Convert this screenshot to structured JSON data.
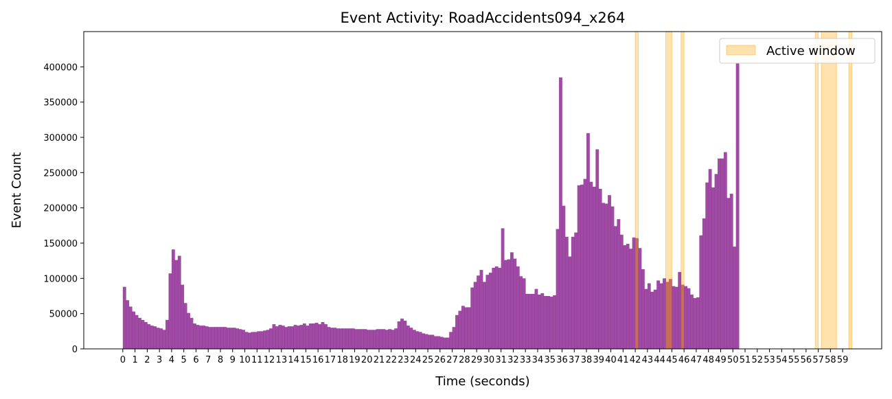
{
  "chart_data": {
    "type": "bar",
    "title": "Event Activity: RoadAccidents094_x264",
    "xlabel": "Time (seconds)",
    "ylabel": "Event Count",
    "xlim": [
      -3.2,
      62.2
    ],
    "ylim": [
      0,
      450000
    ],
    "x_ticks": [
      0,
      1,
      2,
      3,
      4,
      5,
      6,
      7,
      8,
      9,
      10,
      11,
      12,
      13,
      14,
      15,
      16,
      17,
      18,
      19,
      20,
      21,
      22,
      23,
      24,
      25,
      26,
      27,
      28,
      29,
      30,
      31,
      32,
      33,
      34,
      35,
      36,
      37,
      38,
      39,
      40,
      41,
      42,
      43,
      44,
      45,
      46,
      47,
      48,
      49,
      50,
      51,
      52,
      53,
      54,
      55,
      56,
      57,
      58,
      59
    ],
    "y_ticks": [
      0,
      50000,
      100000,
      150000,
      200000,
      250000,
      300000,
      350000,
      400000
    ],
    "bin_width": 0.25,
    "bin_start": 0,
    "bar_color": "#8e2b94",
    "series": [
      {
        "values": [
          88000,
          69000,
          60000,
          53000,
          48000,
          44000,
          41000,
          38000,
          35000,
          33000,
          32000,
          30000,
          29000,
          27000,
          41000,
          107000,
          141000,
          126000,
          132000,
          91000,
          65000,
          51000,
          44000,
          36000,
          34000,
          33000,
          33000,
          32000,
          31000,
          31000,
          31000,
          31000,
          31000,
          31000,
          30000,
          30000,
          30000,
          29000,
          28000,
          27000,
          24000,
          23000,
          24000,
          24000,
          25000,
          25000,
          26000,
          27000,
          29000,
          35000,
          32000,
          34000,
          33000,
          31000,
          32000,
          32000,
          34000,
          33000,
          34000,
          36000,
          33000,
          36000,
          36000,
          37000,
          35000,
          38000,
          35000,
          31000,
          30000,
          30000,
          29000,
          29000,
          29000,
          29000,
          29000,
          29000,
          28000,
          28000,
          28000,
          28000,
          27000,
          27000,
          27000,
          28000,
          28000,
          28000,
          27000,
          28000,
          27000,
          29000,
          39000,
          43000,
          40000,
          33000,
          30000,
          27000,
          25000,
          24000,
          22000,
          21000,
          20000,
          20000,
          18000,
          18000,
          17000,
          16000,
          16000,
          24000,
          31000,
          48000,
          54000,
          61000,
          59000,
          59000,
          87000,
          95000,
          104000,
          112000,
          95000,
          105000,
          108000,
          115000,
          117000,
          115000,
          171000,
          126000,
          127000,
          137000,
          128000,
          117000,
          103000,
          100000,
          78000,
          78000,
          78000,
          85000,
          77000,
          79000,
          75000,
          75000,
          74000,
          76000,
          170000,
          385000,
          203000,
          159000,
          131000,
          159000,
          165000,
          232000,
          233000,
          241000,
          306000,
          237000,
          230000,
          283000,
          227000,
          207000,
          206000,
          218000,
          202000,
          174000,
          184000,
          162000,
          147000,
          149000,
          142000,
          158000,
          157000,
          143000,
          113000,
          85000,
          93000,
          81000,
          84000,
          97000,
          93000,
          100000,
          95000,
          99000,
          89000,
          88000,
          109000,
          91000,
          89000,
          86000,
          77000,
          72000,
          73000,
          161000,
          185000,
          236000,
          255000,
          229000,
          248000,
          270000,
          270000,
          279000,
          214000,
          220000,
          145000,
          405000
        ]
      }
    ],
    "active_windows": [
      [
        42.0,
        42.25
      ],
      [
        44.5,
        45.0
      ],
      [
        45.75,
        46.0
      ],
      [
        56.75,
        57.0
      ],
      [
        57.25,
        58.5
      ],
      [
        59.5,
        59.75
      ]
    ],
    "active_color": "#ffa500",
    "legend": {
      "label": "Active window",
      "position": "top-right"
    },
    "grid": false
  }
}
